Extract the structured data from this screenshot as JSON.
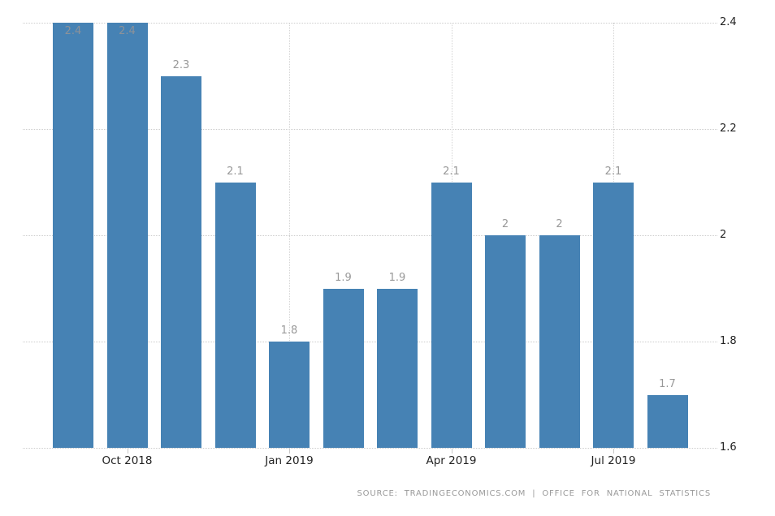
{
  "chart_data": {
    "type": "bar",
    "title": "",
    "xlabel": "",
    "ylabel": "",
    "values": [
      2.4,
      2.4,
      2.3,
      2.1,
      1.8,
      1.9,
      1.9,
      2.1,
      2,
      2,
      2.1,
      1.7
    ],
    "bar_value_labels": [
      "2.4",
      "2.4",
      "2.3",
      "2.1",
      "1.8",
      "1.9",
      "1.9",
      "2.1",
      "2",
      "2",
      "2.1",
      "1.7"
    ],
    "x_ticks": [
      {
        "bar_index": 1,
        "label": "Oct 2018"
      },
      {
        "bar_index": 4,
        "label": "Jan 2019"
      },
      {
        "bar_index": 7,
        "label": "Apr 2019"
      },
      {
        "bar_index": 10,
        "label": "Jul 2019"
      }
    ],
    "y_ticks": [
      2.4,
      2.2,
      2,
      1.8,
      1.6
    ],
    "ylim": [
      1.6,
      2.4
    ],
    "y_axis_side": "right",
    "grid": "dotted horizontal at y ticks and vertical at x ticks",
    "legend": "none",
    "colors": {
      "bar": "#4682b4",
      "value_label": "#999999",
      "axis_label": "#222222",
      "gridline": "#cccccc",
      "source_text": "#9a9a9a"
    }
  },
  "source": {
    "text": "SOURCE: TRADINGECONOMICS.COM | OFFICE FOR NATIONAL STATISTICS"
  }
}
